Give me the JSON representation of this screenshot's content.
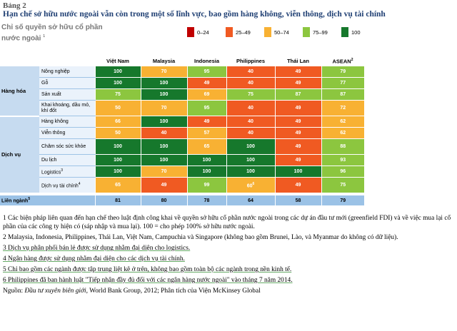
{
  "header": {
    "label": "Bảng 2",
    "title": "Hạn chế sở hữu nước ngoài vẫn còn trong một số lĩnh vực, bao gồm hàng không, viễn thông, dịch vụ tài chính"
  },
  "legend": {
    "title": "Chỉ số quyền sở hữu cổ phần nước ngoài",
    "note": "1",
    "items": [
      {
        "label": "0–24",
        "color": "#c00000"
      },
      {
        "label": "25–49",
        "color": "#f05a22"
      },
      {
        "label": "50–74",
        "color": "#f8b133"
      },
      {
        "label": "75–99",
        "color": "#8cc63f"
      },
      {
        "label": "100",
        "color": "#16782c"
      }
    ]
  },
  "table": {
    "columns": [
      {
        "label": "Việt Nam"
      },
      {
        "label": "Malaysia"
      },
      {
        "label": "Indonesia"
      },
      {
        "label": "Philippines"
      },
      {
        "label": "Thái Lan"
      },
      {
        "label": "ASEAN",
        "note": "2"
      }
    ],
    "groups": [
      {
        "label": "Hàng hóa",
        "rows": [
          {
            "label": "Nông nghiệp",
            "values": [
              100,
              70,
              95,
              40,
              49,
              79
            ]
          },
          {
            "label": "Gỗ",
            "values": [
              100,
              100,
              49,
              40,
              49,
              77
            ]
          },
          {
            "label": "Sản xuất",
            "values": [
              75,
              100,
              69,
              75,
              87,
              87
            ]
          },
          {
            "label": "Khai khoáng, dầu mỏ, khí đốt",
            "values": [
              50,
              70,
              95,
              40,
              49,
              72
            ]
          }
        ]
      },
      {
        "label": "Dịch vụ",
        "rows": [
          {
            "label": "Hàng không",
            "values": [
              66,
              100,
              49,
              40,
              49,
              62
            ]
          },
          {
            "label": "Viễn thông",
            "values": [
              50,
              40,
              57,
              40,
              49,
              62
            ]
          },
          {
            "label": "Chăm sóc sức khỏe",
            "values": [
              100,
              100,
              65,
              100,
              49,
              88
            ]
          },
          {
            "label": "Du lịch",
            "values": [
              100,
              100,
              100,
              100,
              49,
              93
            ]
          },
          {
            "label": "Logistics",
            "note": "3",
            "values": [
              100,
              70,
              100,
              100,
              100,
              96
            ]
          },
          {
            "label": "Dịch vụ tài chính",
            "note": "4",
            "values": [
              65,
              49,
              99,
              {
                "value": 60,
                "note": "6"
              },
              49,
              75
            ]
          }
        ]
      }
    ],
    "total": {
      "label": "Liên ngành",
      "note": "5",
      "values": [
        81,
        80,
        78,
        64,
        58,
        79
      ]
    }
  },
  "footnotes": [
    "1 Các biện pháp liên quan đến hạn chế theo luật định công khai về quyền sở hữu cổ phần nước ngoài trong các dự án đầu tư mới (greenfield FDI) và về việc mua lại cổ phần của các công ty hiện có (sáp nhập và mua lại). 100 = cho phép 100% sở hữu nước ngoài.",
    "2 Malaysia, Indonesia, Philippines, Thái Lan, Việt Nam, Campuchia và Singapore (không bao gồm Brunei, Lào, và Myanmar do không có dữ liệu).",
    "3 Dịch vụ phân phối bán lẻ được sử dụng nhằm đại diện cho logistics.",
    "4 Ngân hàng được sử dụng nhằm đại diện cho các dịch vụ tài chính.",
    "5 Chỉ bao gồm các ngành được tập trung liệt kê ở trên, không bao gồm toàn bộ các ngành trong nền kinh tế.",
    "6 Philippines đã ban hành luật \"Tiếp nhận đầy đủ đối với các ngân hàng nước ngoài\" vào tháng 7 năm 2014."
  ],
  "source": {
    "prefix": "Nguồn:",
    "title": "Đầu tư xuyên biên giới",
    "rest": ", World Bank Group, 2012; Phân tích của Viện McKinsey Global"
  }
}
